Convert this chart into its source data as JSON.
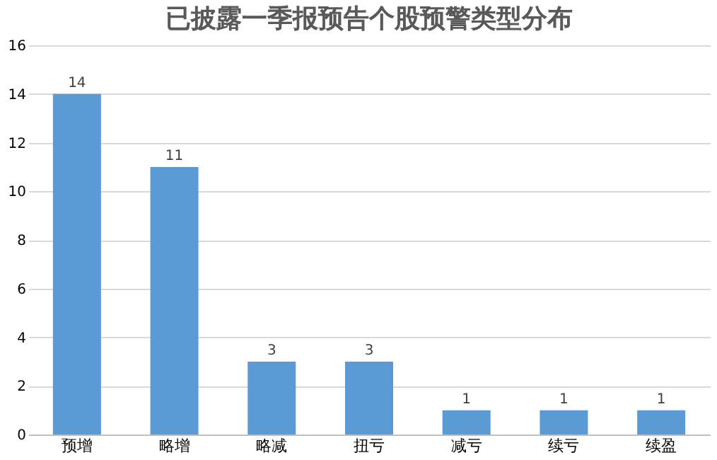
{
  "chart_data": {
    "type": "bar",
    "title": "已披露一季报预告个股预警类型分布",
    "categories": [
      "预增",
      "略增",
      "略减",
      "扭亏",
      "减亏",
      "续亏",
      "续盈"
    ],
    "values": [
      14,
      11,
      3,
      3,
      1,
      1,
      1
    ],
    "color": "#5b9bd5",
    "ylim": [
      0,
      16
    ],
    "yticks": [
      0,
      2,
      4,
      6,
      8,
      10,
      12,
      14,
      16
    ],
    "grid": "y",
    "data_labels": true
  }
}
